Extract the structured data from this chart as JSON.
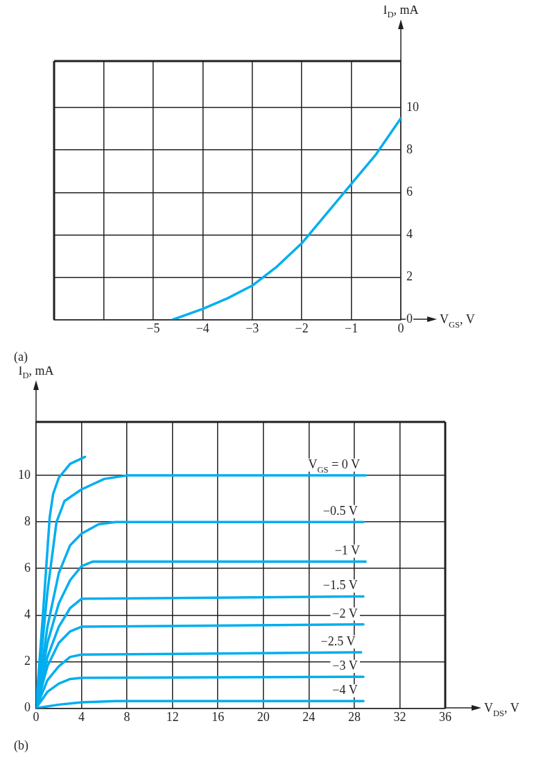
{
  "chart_data": [
    {
      "type": "line",
      "xlabel": "V$_{GS}$, V",
      "ylabel": "I$_{D}$, mA",
      "annotations": [
        "(a)"
      ],
      "xlim": [
        -7,
        0
      ],
      "ylim": [
        0,
        12.2
      ],
      "xticks": [
        {
          "value": -7,
          "label": null
        },
        {
          "value": -6,
          "label": null
        },
        -5,
        -4,
        -3,
        -2,
        -1,
        0
      ],
      "yticks": [
        0,
        2,
        4,
        6,
        8,
        10
      ],
      "grid": true,
      "legend": false,
      "series": [
        {
          "color": "#00aeef",
          "x": [
            -4.6,
            -4,
            -3.5,
            -3,
            -2.5,
            -2,
            -1.5,
            -1,
            -0.5,
            0
          ],
          "values": [
            0,
            0.5,
            1.0,
            1.6,
            2.5,
            3.6,
            5.0,
            6.4,
            7.8,
            9.5
          ]
        }
      ]
    },
    {
      "type": "line",
      "xlabel": "V$_{DS}$, V",
      "ylabel": "I$_{D}$, mA",
      "annotations": [
        "(b)"
      ],
      "xlim": [
        0,
        36
      ],
      "ylim": [
        0,
        12.3
      ],
      "xticks": [
        0,
        4,
        8,
        12,
        16,
        20,
        24,
        28,
        32,
        36
      ],
      "yticks": [
        0,
        2,
        4,
        6,
        8,
        10
      ],
      "grid": true,
      "legend": false,
      "series": [
        {
          "color": "#00aeef",
          "x": [
            0,
            0.6,
            1.2,
            1.5,
            2,
            3,
            4.3
          ],
          "values": [
            0,
            4,
            8.2,
            9.2,
            9.9,
            10.5,
            10.8
          ]
        },
        {
          "name": "V$_{GS}$ = 0 V",
          "color": "#00aeef",
          "x": [
            0,
            1,
            1.8,
            2.5,
            4,
            6,
            8,
            29
          ],
          "values": [
            0,
            5,
            8,
            8.9,
            9.4,
            9.85,
            10,
            10
          ]
        },
        {
          "name": "−0.5 V",
          "color": "#00aeef",
          "x": [
            0,
            1,
            2,
            3,
            4,
            5.5,
            7,
            28.8
          ],
          "values": [
            0,
            3.5,
            5.8,
            7,
            7.5,
            7.9,
            8,
            8
          ]
        },
        {
          "name": "−1 V",
          "color": "#00aeef",
          "x": [
            0,
            1,
            2,
            3,
            4,
            5,
            29
          ],
          "values": [
            0,
            2.8,
            4.5,
            5.5,
            6.1,
            6.3,
            6.3
          ]
        },
        {
          "name": "−1.5 V",
          "color": "#00aeef",
          "x": [
            0,
            1,
            2,
            3,
            4,
            28.8
          ],
          "values": [
            0,
            2.2,
            3.5,
            4.3,
            4.7,
            4.8
          ]
        },
        {
          "name": "−2 V",
          "color": "#00aeef",
          "x": [
            0,
            1,
            2,
            3,
            4,
            28.8
          ],
          "values": [
            0,
            1.8,
            2.8,
            3.3,
            3.5,
            3.6
          ]
        },
        {
          "name": "−2.5 V",
          "color": "#00aeef",
          "x": [
            0,
            1,
            2,
            3,
            4,
            28.6
          ],
          "values": [
            0,
            1.2,
            1.8,
            2.2,
            2.3,
            2.4
          ]
        },
        {
          "name": "−3 V",
          "color": "#00aeef",
          "x": [
            0,
            1,
            2,
            3,
            4,
            28.8
          ],
          "values": [
            0,
            0.7,
            1.05,
            1.25,
            1.3,
            1.35
          ]
        },
        {
          "name": "−4 V",
          "color": "#00aeef",
          "x": [
            0,
            2,
            4,
            7,
            28.8
          ],
          "values": [
            0,
            0.15,
            0.25,
            0.3,
            0.3
          ]
        }
      ]
    }
  ]
}
